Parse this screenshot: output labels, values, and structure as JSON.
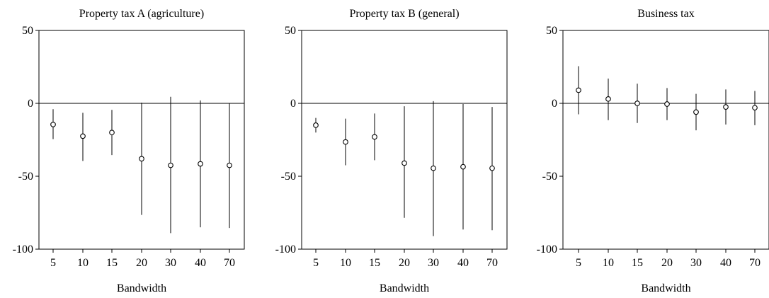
{
  "chart_data": [
    {
      "type": "scatter",
      "title": "Property tax A (agriculture)",
      "xlabel": "Bandwidth",
      "ylabel": "",
      "ylim": [
        -100,
        50
      ],
      "yticks": [
        50,
        0,
        -50,
        -100
      ],
      "reference_line_y": 0,
      "grid": false,
      "categories": [
        "5",
        "10",
        "15",
        "20",
        "30",
        "40",
        "70"
      ],
      "series": [
        {
          "values": [
            -14.5,
            -22.5,
            -20,
            -38,
            -42.5,
            -41.5,
            -42.5
          ],
          "ci_low": [
            -24.5,
            -39.5,
            -35.5,
            -76.5,
            -89,
            -85,
            -85.5
          ],
          "ci_high": [
            -4,
            -6.5,
            -4.5,
            0.5,
            4.5,
            2,
            0
          ]
        }
      ]
    },
    {
      "type": "scatter",
      "title": "Property tax B (general)",
      "xlabel": "Bandwidth",
      "ylabel": "",
      "ylim": [
        -100,
        50
      ],
      "yticks": [
        50,
        0,
        -50,
        -100
      ],
      "reference_line_y": 0,
      "grid": false,
      "categories": [
        "5",
        "10",
        "15",
        "20",
        "30",
        "40",
        "70"
      ],
      "series": [
        {
          "values": [
            -15,
            -26.5,
            -23,
            -41,
            -44.5,
            -43.5,
            -44.5
          ],
          "ci_low": [
            -20,
            -42.5,
            -39,
            -78.5,
            -91,
            -86.5,
            -87
          ],
          "ci_high": [
            -10,
            -10.5,
            -7,
            -2,
            1.5,
            -0.5,
            -2.5
          ]
        }
      ]
    },
    {
      "type": "scatter",
      "title": "Business tax",
      "xlabel": "Bandwidth",
      "ylabel": "",
      "ylim": [
        -100,
        50
      ],
      "yticks": [
        50,
        0,
        -50,
        -100
      ],
      "reference_line_y": 0,
      "grid": false,
      "categories": [
        "5",
        "10",
        "15",
        "20",
        "30",
        "40",
        "70"
      ],
      "series": [
        {
          "values": [
            9,
            3,
            0,
            -0.5,
            -6,
            -2.5,
            -3
          ],
          "ci_low": [
            -7.5,
            -11.5,
            -13.5,
            -11.5,
            -18.5,
            -14.5,
            -15
          ],
          "ci_high": [
            25.5,
            17,
            13.5,
            10.5,
            6.5,
            9.5,
            8.5
          ]
        }
      ]
    }
  ]
}
